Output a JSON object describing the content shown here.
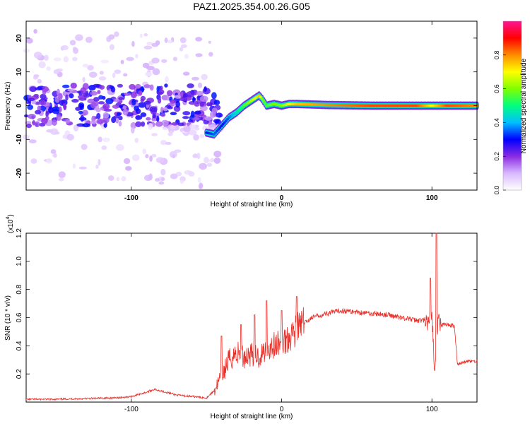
{
  "title": "PAZ1.2025.354.00.26.G05",
  "chart_data": [
    {
      "type": "heatmap",
      "title": "PAZ1.2025.354.00.26.G05",
      "xlabel": "Height of straight line (km)",
      "ylabel": "Frequency (Hz)",
      "xlim": [
        -170,
        130
      ],
      "ylim": [
        -25,
        25
      ],
      "x_ticks": [
        -100,
        0,
        100
      ],
      "x_tick_labels": [
        "-100",
        "0",
        "100"
      ],
      "y_ticks": [
        -20,
        -10,
        0,
        10,
        20
      ],
      "y_tick_labels": [
        "-20",
        "-10",
        "0",
        "10",
        "20"
      ],
      "colorbar": {
        "label": "Normalized spectral amplitude",
        "range": [
          0,
          1
        ],
        "ticks": [
          0,
          0.2,
          0.4,
          0.6,
          0.8
        ],
        "tick_labels": [
          "0.0",
          "0.2",
          "0.4",
          "0.6",
          "0.8"
        ],
        "colormap": [
          "#ffffff",
          "#d9b8ff",
          "#8a2be2",
          "#0000ff",
          "#00bfff",
          "#00ff7f",
          "#7fff00",
          "#ffff00",
          "#ff8c00",
          "#ff0000",
          "#ff1493"
        ]
      },
      "ridge": {
        "x": [
          -50,
          -45,
          -40,
          -35,
          -30,
          -25,
          -20,
          -15,
          -13,
          -10,
          -5,
          0,
          5,
          10,
          30,
          60,
          90,
          100,
          110,
          130
        ],
        "y": [
          -8,
          -8.5,
          -6,
          -3.5,
          -2,
          0,
          1.5,
          3,
          2,
          0,
          0.5,
          0,
          0.5,
          0.5,
          0.2,
          0,
          0,
          0,
          0,
          0
        ],
        "amplitude": [
          0.3,
          0.35,
          0.3,
          0.35,
          0.45,
          0.55,
          0.65,
          0.75,
          0.6,
          0.55,
          0.6,
          0.6,
          0.7,
          0.75,
          0.8,
          0.85,
          0.85,
          0.7,
          0.85,
          0.8
        ]
      },
      "noise_region": {
        "xlim": [
          -170,
          -40
        ],
        "ylim": [
          -25,
          25
        ]
      }
    },
    {
      "type": "line",
      "xlabel": "Height of straight line (km)",
      "ylabel": "SNR (10 * v/v)",
      "multiplier_label": "(x10",
      "multiplier_exponent": "4",
      "xlim": [
        -170,
        130
      ],
      "ylim": [
        0,
        1.2
      ],
      "x_ticks": [
        -100,
        0,
        100
      ],
      "x_tick_labels": [
        "-100",
        "0",
        "100"
      ],
      "y_ticks": [
        0.2,
        0.4,
        0.6,
        0.8,
        1.0,
        1.2
      ],
      "y_tick_labels": [
        "0.2",
        "0.4",
        "0.6",
        "0.8",
        "1.0",
        "1.2"
      ],
      "color": "#e8302a",
      "x": [
        -170,
        -150,
        -130,
        -110,
        -100,
        -90,
        -85,
        -80,
        -70,
        -60,
        -50,
        -45,
        -40,
        -35,
        -30,
        -25,
        -20,
        -15,
        -10,
        -5,
        0,
        5,
        10,
        15,
        20,
        30,
        40,
        50,
        60,
        70,
        80,
        90,
        95,
        98,
        100,
        102,
        104,
        106,
        110,
        115,
        117,
        120,
        125,
        130
      ],
      "y": [
        0.02,
        0.02,
        0.025,
        0.03,
        0.04,
        0.07,
        0.09,
        0.08,
        0.05,
        0.04,
        0.03,
        0.08,
        0.18,
        0.3,
        0.35,
        0.32,
        0.35,
        0.32,
        0.38,
        0.4,
        0.42,
        0.47,
        0.52,
        0.56,
        0.6,
        0.63,
        0.65,
        0.64,
        0.63,
        0.62,
        0.6,
        0.58,
        0.58,
        0.55,
        0.6,
        0.2,
        0.58,
        0.55,
        0.55,
        0.54,
        0.27,
        0.28,
        0.29,
        0.29
      ],
      "spikes": [
        {
          "x": -40,
          "y": 0.47
        },
        {
          "x": -27,
          "y": 0.55
        },
        {
          "x": -18,
          "y": 0.62
        },
        {
          "x": -10,
          "y": 0.72
        },
        {
          "x": 0,
          "y": 0.65
        },
        {
          "x": 10,
          "y": 0.75
        },
        {
          "x": 99,
          "y": 0.88
        },
        {
          "x": 103,
          "y": 1.2
        }
      ]
    }
  ]
}
